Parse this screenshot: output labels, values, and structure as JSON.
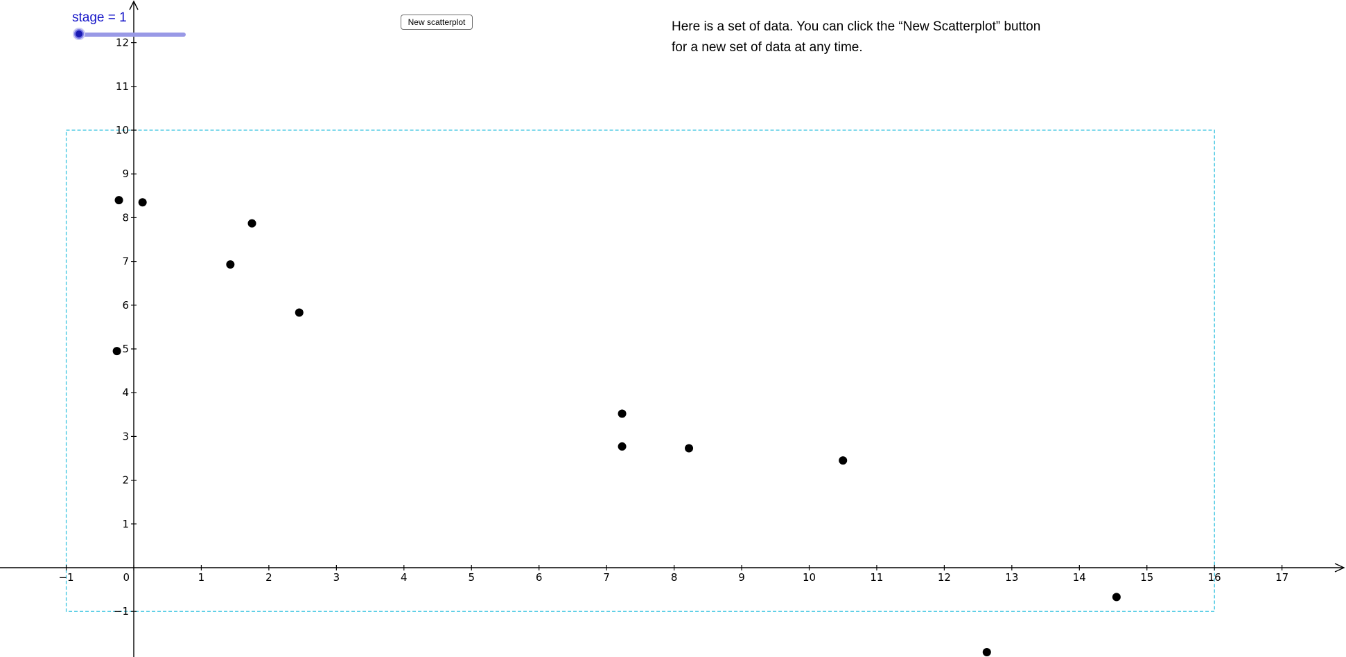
{
  "stage_slider": {
    "label": "stage = 1",
    "value": 1,
    "color": "#1515c8",
    "track_color": "#9999e6"
  },
  "button": {
    "label": "New scatterplot"
  },
  "instructions": {
    "line1": "Here is a set of data. You can click the “New Scatterplot” button",
    "line2": "for a new set of data at any time."
  },
  "chart_data": {
    "type": "scatter",
    "title": "",
    "xlabel": "",
    "ylabel": "",
    "xlim": [
      -1.95,
      18.2
    ],
    "ylim": [
      -2.0,
      12.9
    ],
    "x_ticks": [
      -1,
      0,
      1,
      2,
      3,
      4,
      5,
      6,
      7,
      8,
      9,
      10,
      11,
      12,
      13,
      14,
      15,
      16,
      17
    ],
    "x_tick_labels": [
      "−1",
      "0",
      "1",
      "2",
      "3",
      "4",
      "5",
      "6",
      "7",
      "8",
      "9",
      "10",
      "11",
      "12",
      "13",
      "14",
      "15",
      "16",
      "17"
    ],
    "y_ticks": [
      -1,
      1,
      2,
      3,
      4,
      5,
      6,
      7,
      8,
      9,
      10,
      11,
      12
    ],
    "y_tick_labels": [
      "−1",
      "1",
      "2",
      "3",
      "4",
      "5",
      "6",
      "7",
      "8",
      "9",
      "10",
      "11",
      "12"
    ],
    "grid": false,
    "point_color": "#000000",
    "points": [
      {
        "x": -0.22,
        "y": 8.4
      },
      {
        "x": 0.13,
        "y": 8.35
      },
      {
        "x": 1.43,
        "y": 6.93
      },
      {
        "x": 1.75,
        "y": 7.87
      },
      {
        "x": 2.45,
        "y": 5.83
      },
      {
        "x": -0.25,
        "y": 4.95
      },
      {
        "x": 7.23,
        "y": 3.52
      },
      {
        "x": 7.23,
        "y": 2.77
      },
      {
        "x": 8.22,
        "y": 2.73
      },
      {
        "x": 10.5,
        "y": 2.45
      },
      {
        "x": 12.63,
        "y": -1.93
      },
      {
        "x": 14.55,
        "y": -0.67
      }
    ],
    "bounding_region": {
      "xmin": -1,
      "xmax": 16,
      "ymin": -1,
      "ymax": 10,
      "color": "#38c4e0",
      "style": "dashed"
    }
  }
}
